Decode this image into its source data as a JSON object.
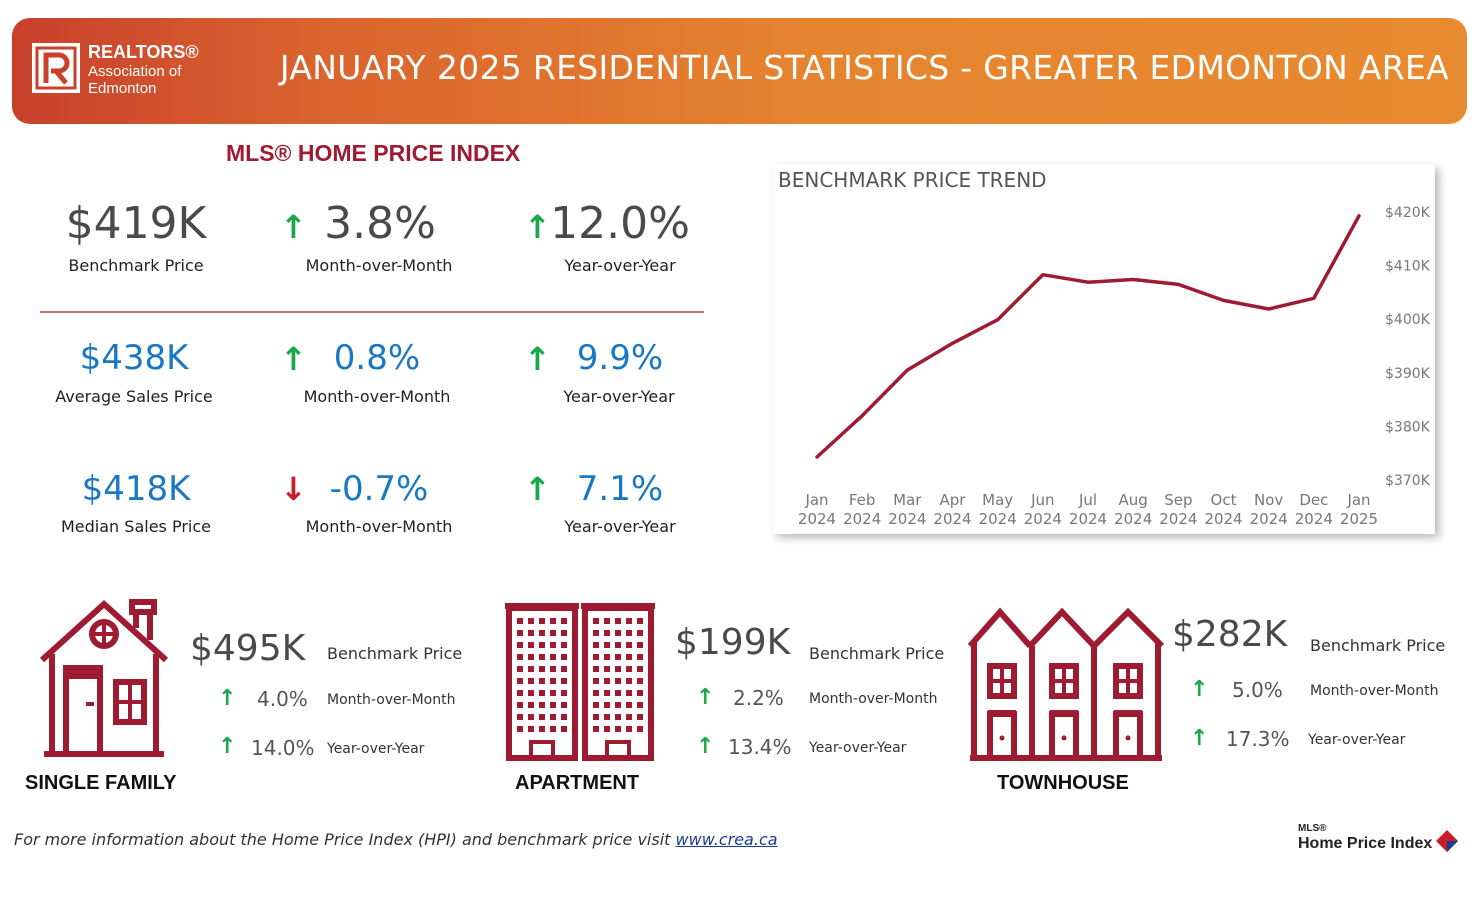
{
  "header": {
    "title": "JANUARY 2025 RESIDENTIAL STATISTICS - GREATER EDMONTON AREA",
    "logo_line1": "REALTORS®",
    "logo_line2": "Association of",
    "logo_line3": "Edmonton",
    "logo_mark": "R"
  },
  "hpi_title": "MLS® HOME PRICE INDEX",
  "stats": [
    {
      "value": "$419K",
      "label": "Benchmark Price",
      "mom": "3.8%",
      "mom_dir": "up",
      "mom_label": "Month-over-Month",
      "yoy": "12.0%",
      "yoy_dir": "up",
      "yoy_label": "Year-over-Year"
    },
    {
      "value": "$438K",
      "label": "Average Sales Price",
      "mom": "0.8%",
      "mom_dir": "up",
      "mom_label": "Month-over-Month",
      "yoy": "9.9%",
      "yoy_dir": "up",
      "yoy_label": "Year-over-Year"
    },
    {
      "value": "$418K",
      "label": "Median Sales Price",
      "mom": "-0.7%",
      "mom_dir": "down",
      "mom_label": "Month-over-Month",
      "yoy": "7.1%",
      "yoy_dir": "up",
      "yoy_label": "Year-over-Year"
    }
  ],
  "arrows": {
    "up": "↑",
    "down": "↓"
  },
  "chart_data": {
    "type": "line",
    "title": "BENCHMARK PRICE TREND",
    "categories": [
      "Jan 2024",
      "Feb 2024",
      "Mar 2024",
      "Apr 2024",
      "May 2024",
      "Jun 2024",
      "Jul 2024",
      "Aug 2024",
      "Sep 2024",
      "Oct 2024",
      "Nov 2024",
      "Dec 2024",
      "Jan 2025"
    ],
    "category_lines": [
      [
        "Jan",
        "2024"
      ],
      [
        "Feb",
        "2024"
      ],
      [
        "Mar",
        "2024"
      ],
      [
        "Apr",
        "2024"
      ],
      [
        "May",
        "2024"
      ],
      [
        "Jun",
        "2024"
      ],
      [
        "Jul",
        "2024"
      ],
      [
        "Aug",
        "2024"
      ],
      [
        "Sep",
        "2024"
      ],
      [
        "Oct",
        "2024"
      ],
      [
        "Nov",
        "2024"
      ],
      [
        "Dec",
        "2024"
      ],
      [
        "Jan",
        "2025"
      ]
    ],
    "series": [
      {
        "values": [
          374.3,
          382.0,
          390.5,
          395.5,
          399.9,
          408.3,
          406.9,
          407.4,
          406.5,
          403.5,
          401.9,
          403.9,
          419.3
        ]
      }
    ],
    "y_ticks": [
      370,
      380,
      390,
      400,
      410,
      420
    ],
    "y_tick_labels": [
      "$370K",
      "$380K",
      "$390K",
      "$400K",
      "$410K",
      "$420K"
    ],
    "ylim": [
      370,
      420
    ],
    "y_axis_side": "right",
    "grid": false,
    "line_color": "#9e1b32"
  },
  "property_types": [
    {
      "name": "SINGLE FAMILY",
      "price": "$495K",
      "price_label": "Benchmark Price",
      "mom": "4.0%",
      "mom_label": "Month-over-Month",
      "yoy": "14.0%",
      "yoy_label": "Year-over-Year",
      "icon": "house-icon"
    },
    {
      "name": "APARTMENT",
      "price": "$199K",
      "price_label": "Benchmark Price",
      "mom": "2.2%",
      "mom_label": "Month-over-Month",
      "yoy": "13.4%",
      "yoy_label": "Year-over-Year",
      "icon": "apartment-icon"
    },
    {
      "name": "TOWNHOUSE",
      "price": "$282K",
      "price_label": "Benchmark Price",
      "mom": "5.0%",
      "mom_label": "Month-over-Month",
      "yoy": "17.3%",
      "yoy_label": "Year-over-Year",
      "icon": "townhouse-icon"
    }
  ],
  "footer": {
    "note": "For more information about the Home Price Index (HPI) and benchmark price visit ",
    "link": "www.crea.ca",
    "logo_small": "MLS®",
    "logo_text": "Home Price Index"
  },
  "colors": {
    "accent": "#9e1b32",
    "up": "#1aa84a",
    "down": "#c81e2c",
    "blue": "#1a78c2",
    "header_orange": "#e5842f"
  }
}
